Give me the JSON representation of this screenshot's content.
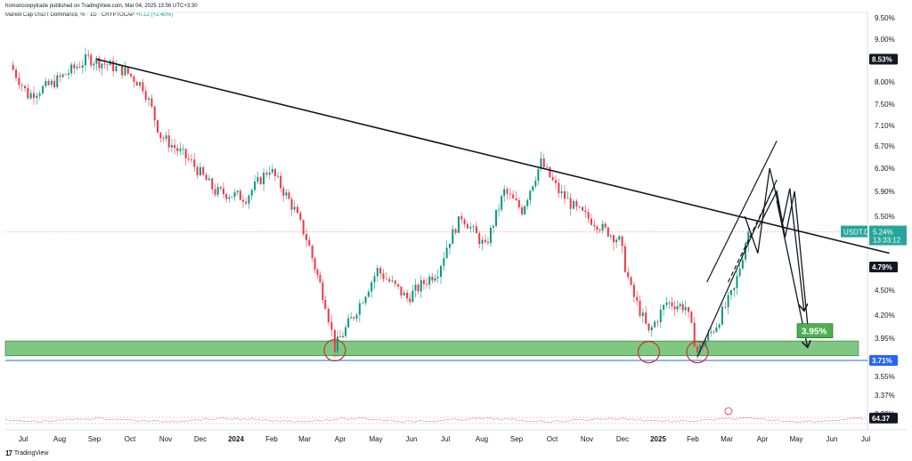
{
  "header": {
    "publisher": "homoncoopytrade published on TradingView.com, Mar 04, 2025 13:56 UTC+3:30",
    "symbol_line": "Market Cap USDT Dominance, % · 1D · CRYPTOCAP",
    "change": "+0.12 (+2.40%)"
  },
  "footer": {
    "logo": "17",
    "brand": "TradingView"
  },
  "colors": {
    "up": "#089981",
    "down": "#f23645",
    "support_zone": "#4caf50",
    "support_line": "#2962ff"
  },
  "chart_data": {
    "type": "candlestick",
    "symbol": "USDT.D",
    "ylim": [
      3.1,
      9.6
    ],
    "y_ticks": [
      "9.50%",
      "9.00%",
      "8.50%",
      "8.00%",
      "7.50%",
      "7.10%",
      "6.70%",
      "6.30%",
      "5.90%",
      "5.50%",
      "5.10%",
      "4.79%",
      "4.50%",
      "4.20%",
      "3.95%",
      "3.71%",
      "3.55%",
      "3.37%",
      "3.20%"
    ],
    "x_ticks": [
      "Jul",
      "Aug",
      "Sep",
      "Oct",
      "Nov",
      "Dec",
      "2024",
      "Feb",
      "Mar",
      "Apr",
      "May",
      "Jun",
      "Jul",
      "Aug",
      "Sep",
      "Oct",
      "Nov",
      "Dec",
      "2025",
      "Feb",
      "Mar",
      "Apr",
      "May",
      "Jun",
      "Jul"
    ],
    "price_path": [
      {
        "x": "2023-06-20",
        "y": 8.4
      },
      {
        "x": "2023-07-05",
        "y": 7.7
      },
      {
        "x": "2023-07-25",
        "y": 7.95
      },
      {
        "x": "2023-08-25",
        "y": 8.55
      },
      {
        "x": "2023-09-10",
        "y": 8.4
      },
      {
        "x": "2023-09-25",
        "y": 8.25
      },
      {
        "x": "2023-10-10",
        "y": 7.9
      },
      {
        "x": "2023-10-25",
        "y": 6.9
      },
      {
        "x": "2023-11-20",
        "y": 6.4
      },
      {
        "x": "2023-12-10",
        "y": 5.9
      },
      {
        "x": "2024-01-05",
        "y": 5.8
      },
      {
        "x": "2024-01-25",
        "y": 6.3
      },
      {
        "x": "2024-02-15",
        "y": 5.6
      },
      {
        "x": "2024-03-01",
        "y": 4.9
      },
      {
        "x": "2024-03-12",
        "y": 4.35
      },
      {
        "x": "2024-03-20",
        "y": 3.85
      },
      {
        "x": "2024-04-05",
        "y": 4.2
      },
      {
        "x": "2024-04-25",
        "y": 4.75
      },
      {
        "x": "2024-05-20",
        "y": 4.4
      },
      {
        "x": "2024-06-15",
        "y": 4.75
      },
      {
        "x": "2024-07-05",
        "y": 5.5
      },
      {
        "x": "2024-07-25",
        "y": 5.0
      },
      {
        "x": "2024-08-10",
        "y": 5.9
      },
      {
        "x": "2024-08-25",
        "y": 5.6
      },
      {
        "x": "2024-09-10",
        "y": 6.4
      },
      {
        "x": "2024-09-25",
        "y": 5.9
      },
      {
        "x": "2024-10-10",
        "y": 5.6
      },
      {
        "x": "2024-10-25",
        "y": 5.4
      },
      {
        "x": "2024-11-15",
        "y": 5.1
      },
      {
        "x": "2024-11-25",
        "y": 4.5
      },
      {
        "x": "2024-12-10",
        "y": 4.0
      },
      {
        "x": "2024-12-25",
        "y": 4.35
      },
      {
        "x": "2025-01-10",
        "y": 4.3
      },
      {
        "x": "2025-01-20",
        "y": 3.8
      },
      {
        "x": "2025-02-05",
        "y": 4.1
      },
      {
        "x": "2025-02-20",
        "y": 4.5
      },
      {
        "x": "2025-03-04",
        "y": 5.24
      }
    ],
    "last_price": "5.24%",
    "countdown": "13:33:12",
    "level_labels": [
      "8.53%",
      "4.79%",
      "3.71%",
      "64.37"
    ],
    "target_label": "3.95%",
    "support_zone": [
      3.76,
      3.92
    ],
    "support_line": 3.71,
    "trendline": [
      {
        "x": "2023-09-01",
        "y": 8.53
      },
      {
        "x": "2025-07-01",
        "y": 4.95
      }
    ]
  }
}
